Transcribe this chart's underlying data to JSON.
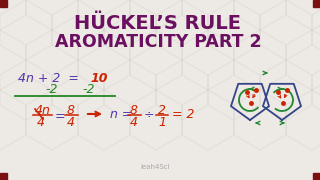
{
  "title_line1": "HÜCKEL’S RULE",
  "title_line2": "AROMATICITY PART 2",
  "bg_color": "#ede9e4",
  "title_color": "#6b1060",
  "hex_edge_color": "#ccc8c2",
  "math_purple": "#5533aa",
  "math_green": "#228822",
  "math_red": "#cc2200",
  "watermark": "leah4Sci",
  "corner_color": "#7a1010",
  "blue_ring": "#334488",
  "green_arrow": "#228833"
}
